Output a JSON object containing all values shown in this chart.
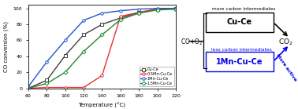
{
  "temp": [
    60,
    80,
    100,
    120,
    140,
    160,
    180,
    200,
    220
  ],
  "cu_ce": [
    0,
    10,
    41,
    67,
    80,
    88,
    95,
    99,
    100
  ],
  "mn05_cu_ce": [
    0,
    1,
    1,
    1,
    16,
    90,
    95,
    99,
    100
  ],
  "mn1_cu_ce": [
    2,
    33,
    60,
    85,
    94,
    97,
    99,
    100,
    100
  ],
  "mn15_cu_ce": [
    0,
    6,
    20,
    46,
    67,
    86,
    94,
    98,
    99
  ],
  "colors": {
    "cu_ce": "#404040",
    "mn05_cu_ce": "#e83030",
    "mn1_cu_ce": "#2255cc",
    "mn15_cu_ce": "#228833"
  },
  "legend_labels": [
    "Cu-Ce",
    "0.5Mn-Cu-Ce",
    "1Mn-Cu-Ce",
    "1.5Mn-Cu-Ce"
  ],
  "xlabel": "Temperature (°C)",
  "ylabel": "CO conversion (%)",
  "xlim": [
    60,
    220
  ],
  "ylim": [
    0,
    105
  ],
  "xticks": [
    60,
    80,
    100,
    120,
    140,
    160,
    180,
    200,
    220
  ],
  "yticks": [
    0,
    20,
    40,
    60,
    80,
    100
  ],
  "diagram": {
    "text_more": "more carbon intermediates",
    "text_less": "less carbon intermediates",
    "text_co_o2": "CO+O",
    "text_co_o2_sub": "2",
    "text_co2": "CO",
    "text_co2_sub": "2",
    "text_cu_ce": "Cu-Ce",
    "text_mn_cu_ce": "1Mn-Cu-Ce",
    "text_more_active": "More active",
    "color_black": "#000000",
    "color_blue": "#0000ee"
  }
}
